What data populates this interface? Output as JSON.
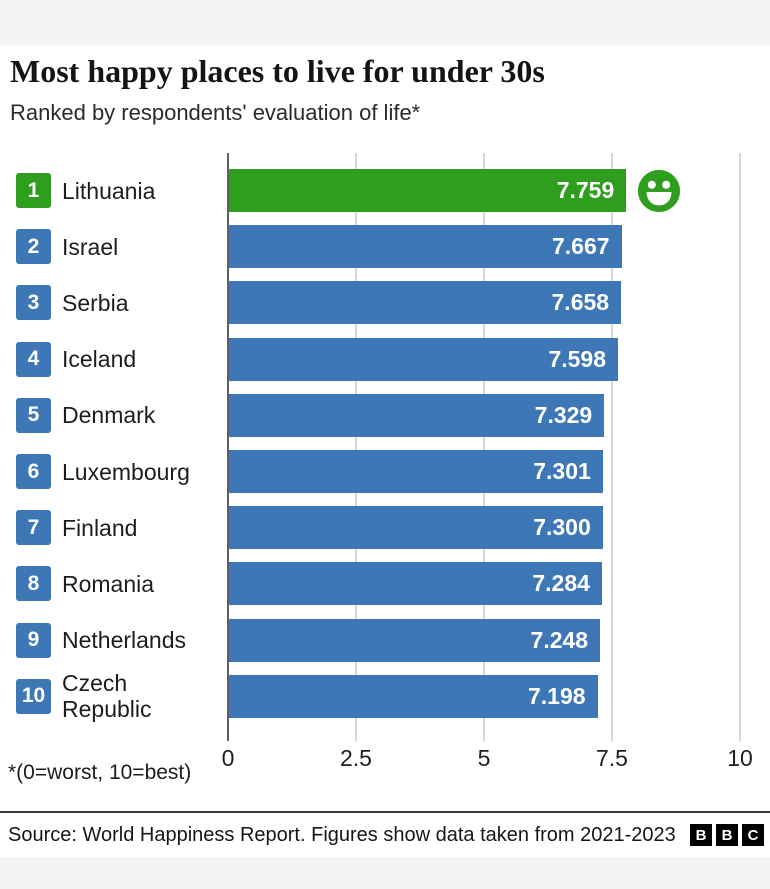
{
  "chart_data": {
    "type": "bar",
    "orientation": "horizontal",
    "title": "Most happy places to live for under 30s",
    "subtitle": "Ranked by respondents' evaluation of life*",
    "categories": [
      "Lithuania",
      "Israel",
      "Serbia",
      "Iceland",
      "Denmark",
      "Luxembourg",
      "Finland",
      "Romania",
      "Netherlands",
      "Czech Republic"
    ],
    "ranks": [
      "1",
      "2",
      "3",
      "4",
      "5",
      "6",
      "7",
      "8",
      "9",
      "10"
    ],
    "values": [
      7.759,
      7.667,
      7.658,
      7.598,
      7.329,
      7.301,
      7.3,
      7.284,
      7.248,
      7.198
    ],
    "value_labels": [
      "7.759",
      "7.667",
      "7.658",
      "7.598",
      "7.329",
      "7.301",
      "7.300",
      "7.284",
      "7.248",
      "7.198"
    ],
    "xlim": [
      0,
      10
    ],
    "xticks": [
      0,
      2.5,
      5,
      7.5,
      10
    ],
    "xtick_labels": [
      "0",
      "2.5",
      "5",
      "7.5",
      "10"
    ],
    "grid": true,
    "legend": false,
    "highlight_index": 0,
    "annotations": [
      {
        "type": "smiley-face-icon",
        "row": 0
      }
    ],
    "colors": {
      "highlight_bar": "#2f9e1e",
      "bar": "#3d77b6",
      "value_text": "#ffffff",
      "gridline": "#d7d7d5",
      "zero_axis": "#5f5f5f"
    },
    "footnote": "*(0=worst, 10=best)"
  },
  "footer": {
    "source": "Source: World Happiness Report. Figures show data taken from 2021-2023",
    "logo_letters": [
      "B",
      "B",
      "C"
    ]
  }
}
